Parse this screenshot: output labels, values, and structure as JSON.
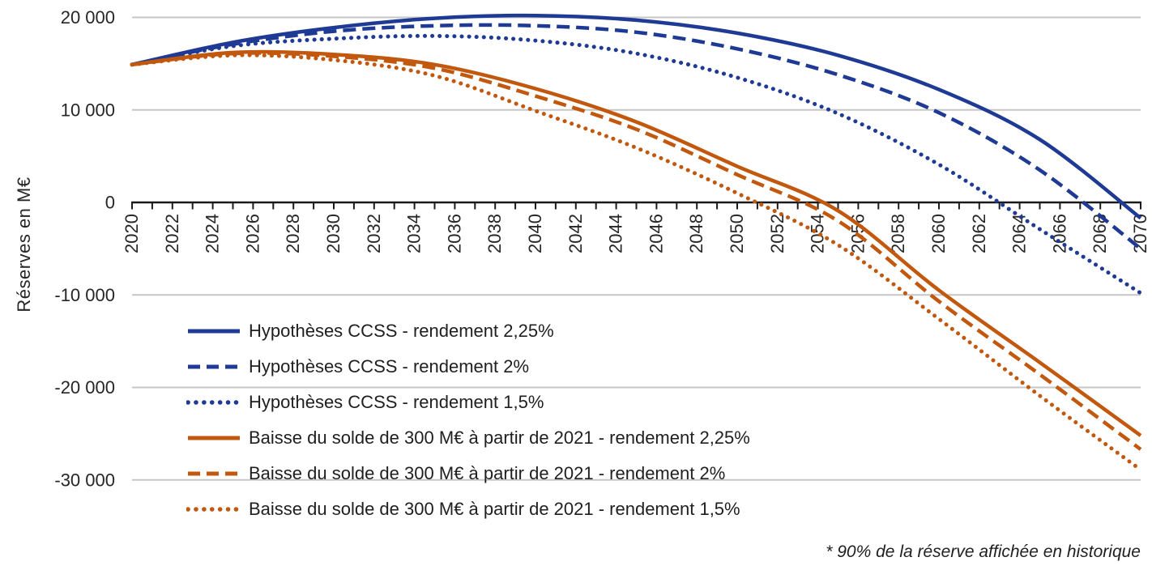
{
  "chart_data": {
    "type": "line",
    "title": "",
    "ylabel": "Réserves en M€",
    "xlabel": "",
    "x_range": [
      2020,
      2070
    ],
    "ylim": [
      -30000,
      20000
    ],
    "grid": true,
    "legend_position": "inside-bottom-left",
    "y_ticks": [
      20000,
      10000,
      0,
      -10000,
      -20000,
      -30000
    ],
    "y_tick_labels": [
      "20 000",
      "10 000",
      "0",
      "-10 000",
      "-20 000",
      "-30 000"
    ],
    "x_tick_step_labels": 2,
    "x_tick_labels": [
      "2020",
      "2022",
      "2024",
      "2026",
      "2028",
      "2030",
      "2032",
      "2034",
      "2036",
      "2038",
      "2040",
      "2042",
      "2044",
      "2046",
      "2048",
      "2050",
      "2052",
      "2054",
      "2056",
      "2058",
      "2060",
      "2062",
      "2064",
      "2066",
      "2068",
      "2070"
    ],
    "x_sample_years": [
      2020,
      2025,
      2030,
      2035,
      2040,
      2045,
      2050,
      2055,
      2060,
      2065,
      2070
    ],
    "series": [
      {
        "name": "Hypothèses CCSS - rendement 2,25%",
        "color": "#1e3a94",
        "style": "solid",
        "values": [
          14900,
          17300,
          18900,
          19900,
          20200,
          19700,
          18300,
          15900,
          12200,
          6800,
          -1700
        ]
      },
      {
        "name": "Hypothèses CCSS - rendement 2%",
        "color": "#1e3a94",
        "style": "dashed",
        "values": [
          14900,
          17100,
          18500,
          19100,
          19100,
          18400,
          16600,
          13800,
          9700,
          3500,
          -5000
        ]
      },
      {
        "name": "Hypothèses CCSS - rendement 1,5%",
        "color": "#1e3a94",
        "style": "dotted",
        "values": [
          14900,
          16900,
          17700,
          18000,
          17500,
          16100,
          13500,
          9600,
          4100,
          -2900,
          -9800
        ]
      },
      {
        "name": "Baisse du solde de 300 M€ à partir de 2021 - rendement 2,25%",
        "color": "#c2580e",
        "style": "solid",
        "values": [
          14900,
          16200,
          16000,
          14900,
          12300,
          8700,
          3900,
          -900,
          -9500,
          -17300,
          -25200
        ]
      },
      {
        "name": "Baisse du solde de 300 M€ à partir de 2021 - rendement 2%",
        "color": "#c2580e",
        "style": "dashed",
        "values": [
          14900,
          16100,
          15800,
          14500,
          11500,
          7900,
          3000,
          -2000,
          -10700,
          -18600,
          -26700
        ]
      },
      {
        "name": "Baisse du solde de 300 M€ à partir de 2021 - rendement 1,5%",
        "color": "#c2580e",
        "style": "dotted",
        "values": [
          14900,
          15900,
          15400,
          13700,
          9900,
          5900,
          1000,
          -4600,
          -12600,
          -20900,
          -28900
        ]
      }
    ],
    "footnote": "* 90% de la réserve affichée en historique",
    "grid_color": "#c6c6c6",
    "axis_color": "#1a1a1a",
    "text_color": "#262626"
  }
}
